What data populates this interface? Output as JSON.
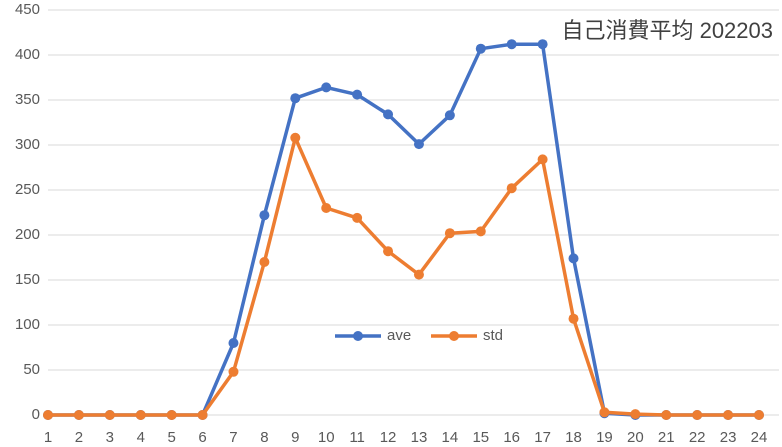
{
  "chart_data": {
    "type": "line",
    "title": "自己消費平均  202203",
    "categories": [
      "1",
      "2",
      "3",
      "4",
      "5",
      "6",
      "7",
      "8",
      "9",
      "10",
      "11",
      "12",
      "13",
      "14",
      "15",
      "16",
      "17",
      "18",
      "19",
      "20",
      "21",
      "22",
      "23",
      "24"
    ],
    "series": [
      {
        "name": "ave",
        "color": "#4472c4",
        "values": [
          0,
          0,
          0,
          0,
          0,
          0,
          80,
          222,
          352,
          364,
          356,
          334,
          301,
          333,
          407,
          412,
          412,
          174,
          2,
          0,
          0,
          0,
          0,
          0
        ]
      },
      {
        "name": "std",
        "color": "#ed7d31",
        "values": [
          0,
          0,
          0,
          0,
          0,
          0,
          48,
          170,
          308,
          230,
          219,
          182,
          156,
          202,
          204,
          252,
          284,
          107,
          3,
          1,
          0,
          0,
          0,
          0
        ]
      }
    ],
    "ylim": [
      0,
      450
    ],
    "yticks": [
      0,
      50,
      100,
      150,
      200,
      250,
      300,
      350,
      400,
      450
    ],
    "grid": true,
    "legend": "center"
  }
}
